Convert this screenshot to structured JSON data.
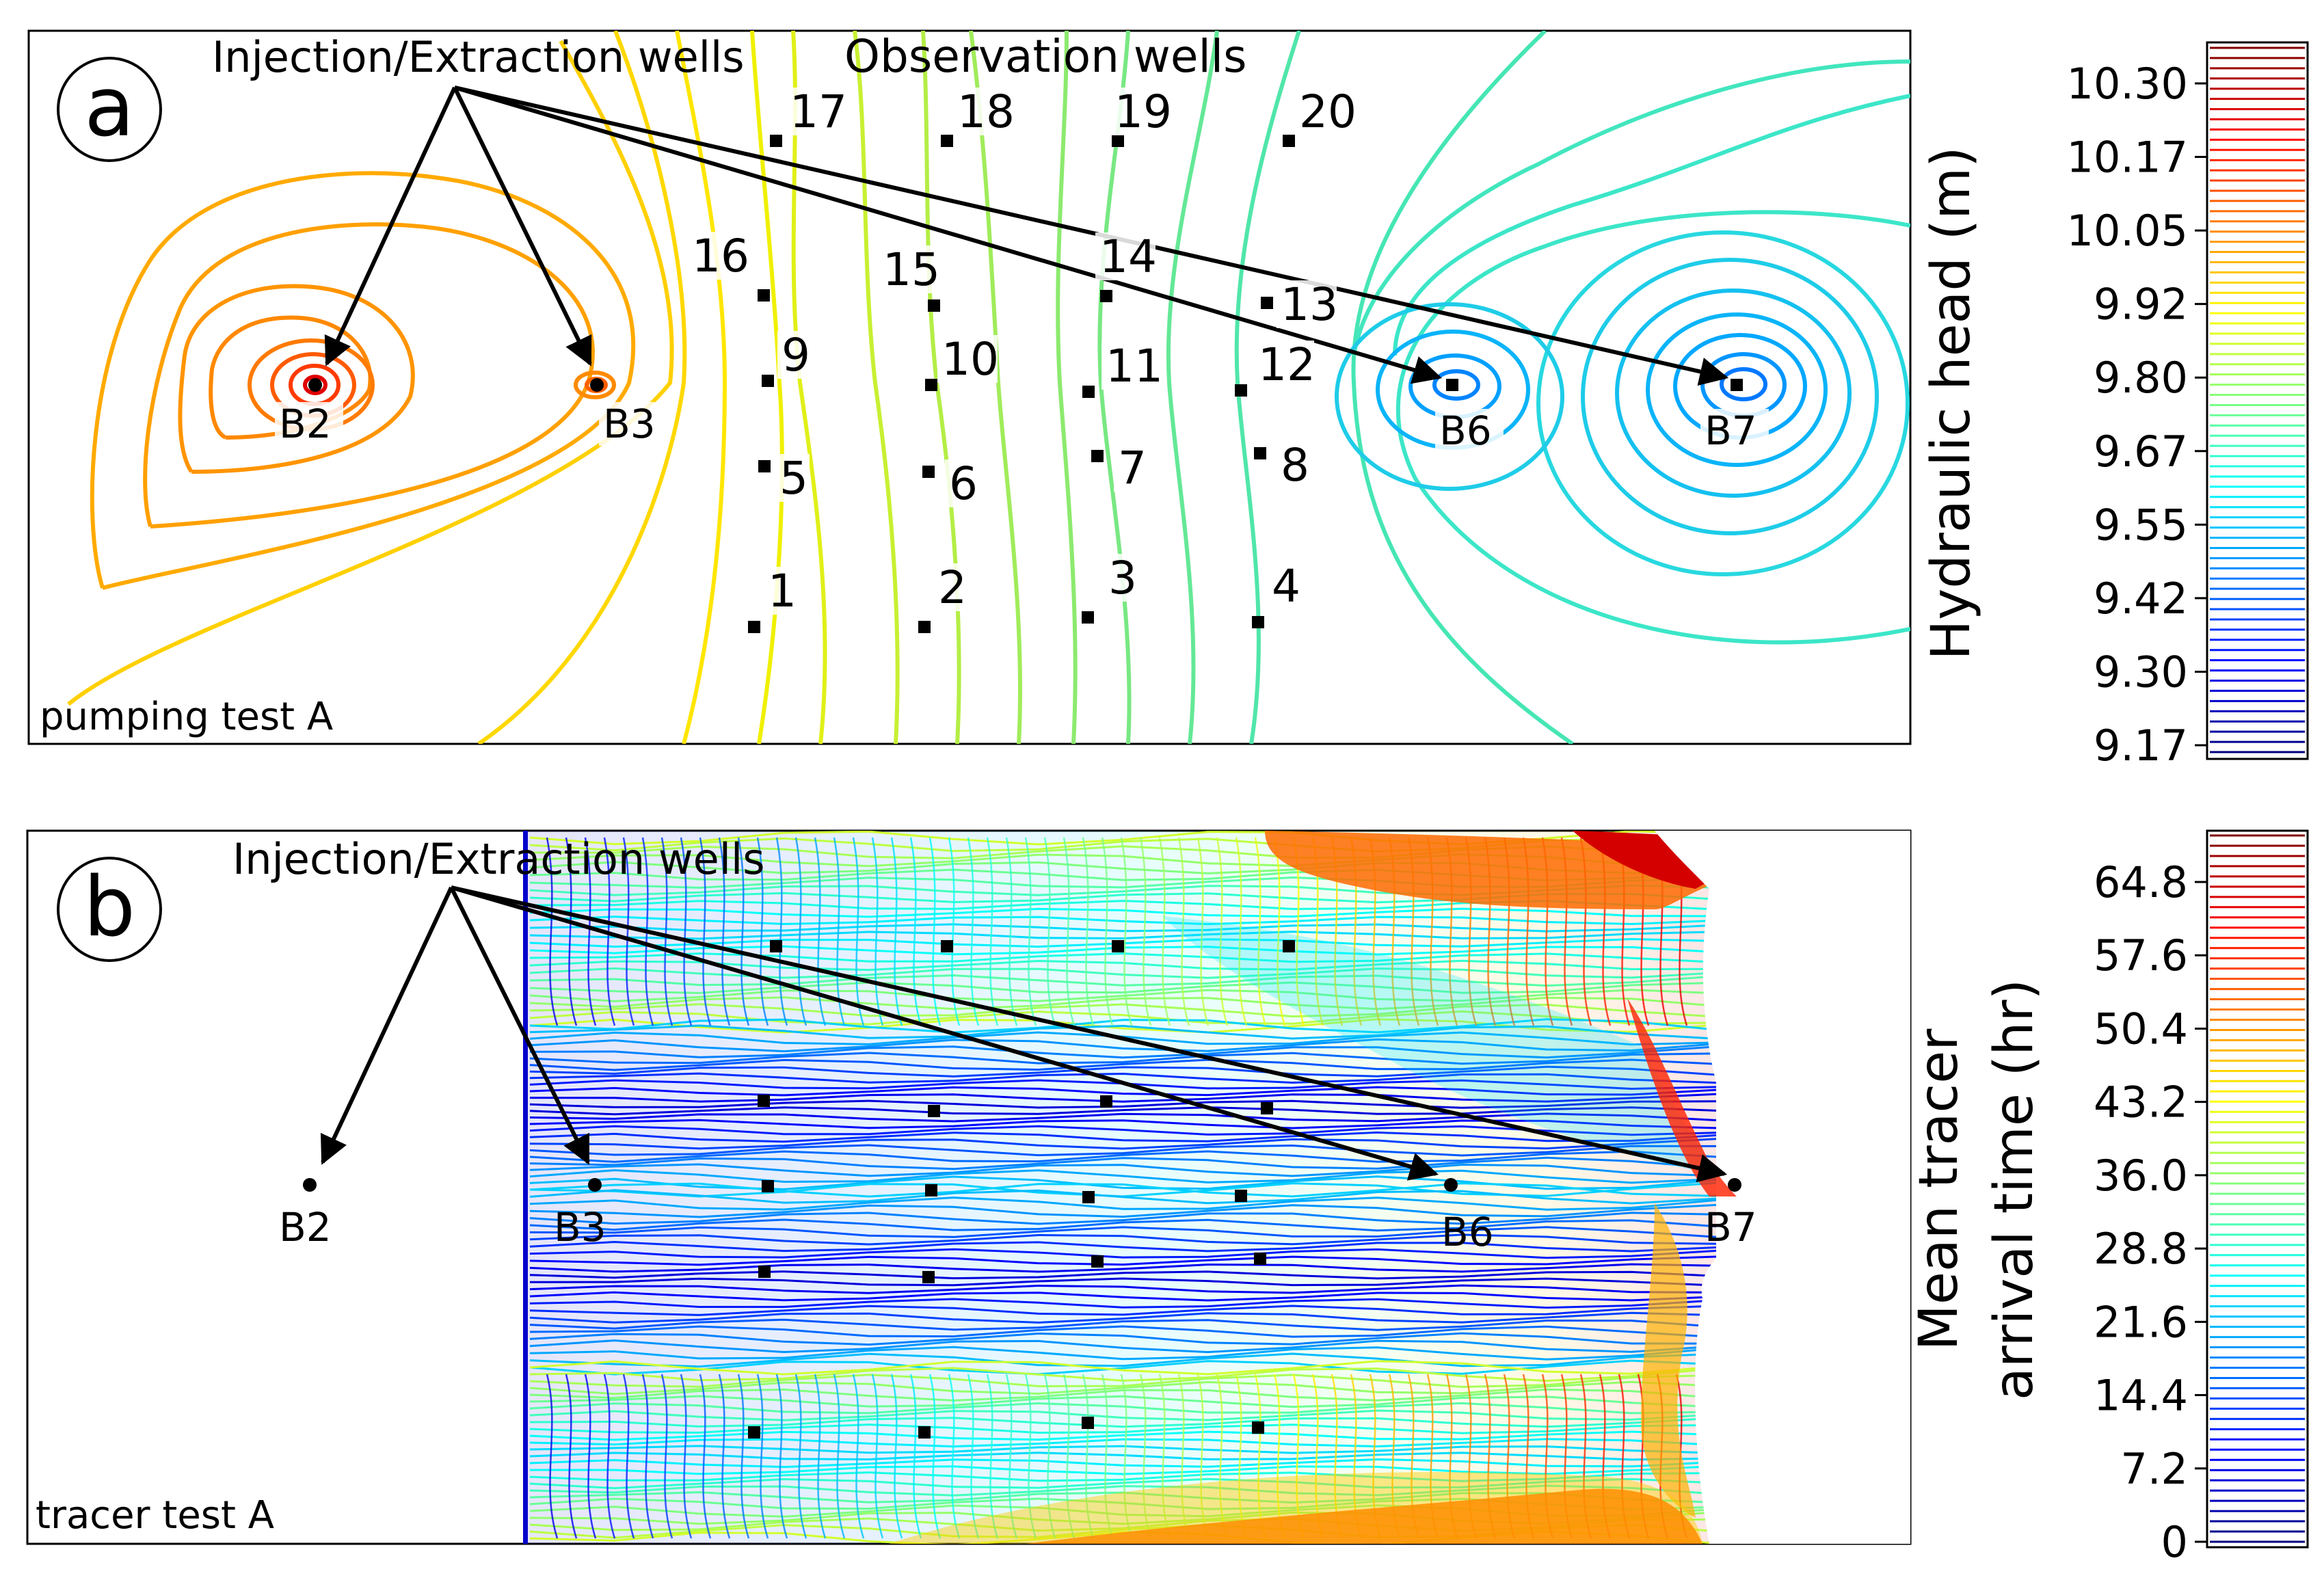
{
  "chart_data": [
    {
      "type": "contour",
      "panel_letter": "a",
      "subtitle": "pumping test A",
      "annotations": {
        "injection_extraction": "Injection/Extraction wells",
        "observation": "Observation wells"
      },
      "wells": [
        {
          "label": "B2",
          "role": "injection/extraction"
        },
        {
          "label": "B3",
          "role": "injection/extraction"
        },
        {
          "label": "B6",
          "role": "injection/extraction"
        },
        {
          "label": "B7",
          "role": "injection/extraction"
        }
      ],
      "observation_wells": [
        "1",
        "2",
        "3",
        "4",
        "5",
        "6",
        "7",
        "8",
        "9",
        "10",
        "11",
        "12",
        "13",
        "14",
        "15",
        "16",
        "17",
        "18",
        "19",
        "20"
      ],
      "colorbar": {
        "label": "Hydraulic head (m)",
        "ticks": [
          "10.30",
          "10.17",
          "10.05",
          "9.92",
          "9.80",
          "9.67",
          "9.55",
          "9.42",
          "9.30",
          "9.17"
        ],
        "range": [
          9.17,
          10.3
        ],
        "colormap": "jet"
      }
    },
    {
      "type": "contour",
      "panel_letter": "b",
      "subtitle": "tracer test A",
      "annotations": {
        "injection_extraction": "Injection/Extraction wells"
      },
      "wells": [
        {
          "label": "B2"
        },
        {
          "label": "B3"
        },
        {
          "label": "B6"
        },
        {
          "label": "B7"
        }
      ],
      "colorbar": {
        "label_line1": "Mean tracer",
        "label_line2": "arrival time (hr)",
        "ticks": [
          "64.8",
          "57.6",
          "50.4",
          "43.2",
          "36.0",
          "28.8",
          "21.6",
          "14.4",
          "7.2",
          "0"
        ],
        "range": [
          0,
          70
        ],
        "colormap": "jet"
      }
    }
  ]
}
